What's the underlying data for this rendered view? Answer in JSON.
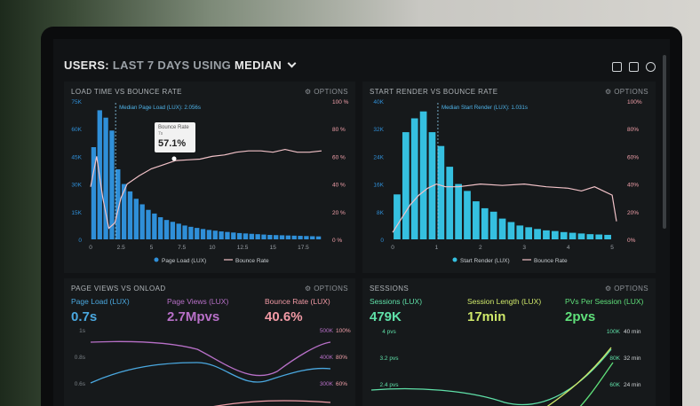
{
  "header": {
    "prefix": "USERS:",
    "range": "LAST 7 DAYS",
    "using": "USING",
    "stat": "MEDIAN",
    "icons": [
      "monitor-icon",
      "share-icon",
      "help-icon"
    ]
  },
  "panels": {
    "load_time": {
      "title": "LOAD TIME VS BOUNCE RATE",
      "options": "OPTIONS"
    },
    "start_render": {
      "title": "START RENDER VS BOUNCE RATE",
      "options": "OPTIONS"
    },
    "page_views": {
      "title": "PAGE VIEWS VS ONLOAD",
      "options": "OPTIONS"
    },
    "sessions": {
      "title": "SESSIONS",
      "options": "OPTIONS"
    }
  },
  "kpis": {
    "page_load": {
      "label": "Page Load (LUX)",
      "value": "0.7s",
      "color": "#4aa8e0"
    },
    "page_views": {
      "label": "Page Views (LUX)",
      "value": "2.7Mpvs",
      "color": "#b870c8"
    },
    "bounce_rate": {
      "label": "Bounce Rate (LUX)",
      "value": "40.6%",
      "color": "#f29aa5"
    },
    "sessions": {
      "label": "Sessions (LUX)",
      "value": "479K",
      "color": "#5fe0a8"
    },
    "session_length": {
      "label": "Session Length (LUX)",
      "value": "17min",
      "color": "#cfe86a"
    },
    "pvs_per_session": {
      "label": "PVs Per Session (LUX)",
      "value": "2pvs",
      "color": "#5fe07a"
    }
  },
  "tooltip": {
    "label": "Bounce Rate",
    "sub": "7s",
    "value": "57.1%"
  },
  "chart_data": [
    {
      "type": "bar",
      "name_key": "load_time",
      "xticks": [
        "0",
        "2.5",
        "5",
        "7.5",
        "10",
        "12.5",
        "15",
        "17.5"
      ],
      "yticks_left": [
        "75K",
        "60K",
        "45K",
        "30K",
        "15K",
        "0"
      ],
      "yticks_right": [
        "100 %",
        "80 %",
        "60 %",
        "40 %",
        "20 %",
        "0 %"
      ],
      "median_label": "Median Page Load (LUX): 2.056s",
      "ylim": [
        0,
        75000
      ],
      "bar_color": "#2f8fd8",
      "line_color": "#f2c2c8",
      "legend": [
        "Page Load (LUX)",
        "Bounce Rate"
      ],
      "x": [
        0.25,
        0.75,
        1.25,
        1.75,
        2.25,
        2.75,
        3.25,
        3.75,
        4.25,
        4.75,
        5.25,
        5.75,
        6.25,
        6.75,
        7.25,
        7.75,
        8.25,
        8.75,
        9.25,
        9.75,
        10.25,
        10.75,
        11.25,
        11.75,
        12.25,
        12.75,
        13.25,
        13.75,
        14.25,
        14.75,
        15.25,
        15.75,
        16.25,
        16.75,
        17.25,
        17.75,
        18.25,
        18.75
      ],
      "values": [
        50000,
        70000,
        66000,
        59000,
        38000,
        30000,
        26000,
        22000,
        19000,
        16000,
        14000,
        12000,
        10500,
        9500,
        8500,
        7500,
        6800,
        6200,
        5600,
        5100,
        4700,
        4300,
        4000,
        3700,
        3400,
        3200,
        3000,
        2800,
        2600,
        2400,
        2300,
        2200,
        2100,
        2000,
        1900,
        1800,
        1700,
        1600
      ],
      "bounce_x": [
        0,
        0.5,
        1,
        1.5,
        2,
        2.5,
        3,
        4,
        5,
        6,
        7,
        8,
        9,
        10,
        11,
        12,
        13,
        14,
        15,
        16,
        17,
        18,
        19
      ],
      "bounce": [
        38,
        60,
        30,
        8,
        12,
        30,
        40,
        46,
        51,
        54,
        57,
        57.5,
        58,
        60,
        61,
        63,
        64,
        64,
        63,
        65,
        63,
        63,
        64
      ]
    },
    {
      "type": "bar",
      "name_key": "start_render",
      "xticks": [
        "0",
        "1",
        "2",
        "3",
        "4",
        "5"
      ],
      "yticks_left": [
        "40K",
        "32K",
        "24K",
        "16K",
        "8K",
        "0"
      ],
      "yticks_right": [
        "100%",
        "80%",
        "60%",
        "40%",
        "20%",
        "0%"
      ],
      "median_label": "Median Start Render (LUX): 1.031s",
      "ylim": [
        0,
        40000
      ],
      "bar_color": "#35c0e0",
      "line_color": "#f2c2c8",
      "legend": [
        "Start Render (LUX)",
        "Bounce Rate"
      ],
      "x": [
        0.1,
        0.3,
        0.5,
        0.7,
        0.9,
        1.1,
        1.3,
        1.5,
        1.7,
        1.9,
        2.1,
        2.3,
        2.5,
        2.7,
        2.9,
        3.1,
        3.3,
        3.5,
        3.7,
        3.9,
        4.1,
        4.3,
        4.5,
        4.7,
        4.9
      ],
      "values": [
        13000,
        31000,
        35000,
        37000,
        31000,
        27000,
        21000,
        16000,
        14000,
        11000,
        9000,
        8000,
        6000,
        5000,
        4000,
        3500,
        3000,
        2600,
        2400,
        2100,
        1900,
        1700,
        1500,
        1400,
        1300
      ],
      "bounce_x": [
        0,
        0.2,
        0.4,
        0.6,
        0.8,
        1.0,
        1.2,
        1.5,
        2.0,
        2.5,
        3.0,
        3.5,
        4.0,
        4.3,
        4.6,
        4.8,
        5.0,
        5.1
      ],
      "bounce": [
        5,
        15,
        25,
        32,
        37,
        40,
        38,
        38,
        40,
        39,
        40,
        38,
        37,
        35,
        38,
        35,
        32,
        13
      ]
    },
    {
      "type": "line",
      "name_key": "page_views",
      "yticks_left": [
        "1s",
        "0.8s",
        "0.6s"
      ],
      "yticks_mid": [
        "500K",
        "400K",
        "300K"
      ],
      "yticks_right": [
        "100%",
        "80%",
        "60%"
      ]
    },
    {
      "type": "line",
      "name_key": "sessions",
      "yticks_left": [
        "4 pvs",
        "3.2 pvs",
        "2.4 pvs"
      ],
      "yticks_mid": [
        "100K",
        "80K",
        "60K"
      ],
      "yticks_right": [
        "40 min",
        "32 min",
        "24 min"
      ]
    }
  ]
}
